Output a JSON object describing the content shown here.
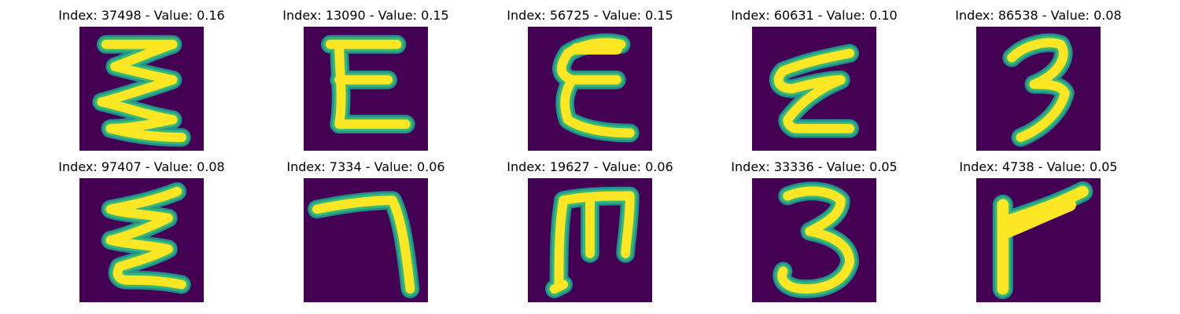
{
  "colors": {
    "background": "#ffffff",
    "tile_background": "#440154",
    "stroke_core": "#fde725",
    "stroke_edge": "#35b779",
    "stroke_halo": "#21918c"
  },
  "panels": [
    {
      "index": "37498",
      "value": "0.16",
      "title": "Index: 37498 - Value: 0.16"
    },
    {
      "index": "13090",
      "value": "0.15",
      "title": "Index: 13090 - Value: 0.15"
    },
    {
      "index": "56725",
      "value": "0.15",
      "title": "Index: 56725 - Value: 0.15"
    },
    {
      "index": "60631",
      "value": "0.10",
      "title": "Index: 60631 - Value: 0.10"
    },
    {
      "index": "86538",
      "value": "0.08",
      "title": "Index: 86538 - Value: 0.08"
    },
    {
      "index": "97407",
      "value": "0.08",
      "title": "Index: 97407 - Value: 0.08"
    },
    {
      "index": "7334",
      "value": "0.06",
      "title": "Index: 7334 - Value: 0.06"
    },
    {
      "index": "19627",
      "value": "0.06",
      "title": "Index: 19627 - Value: 0.06"
    },
    {
      "index": "33336",
      "value": "0.05",
      "title": "Index: 33336 - Value: 0.05"
    },
    {
      "index": "4738",
      "value": "0.05",
      "title": "Index: 4738 - Value: 0.05"
    }
  ]
}
